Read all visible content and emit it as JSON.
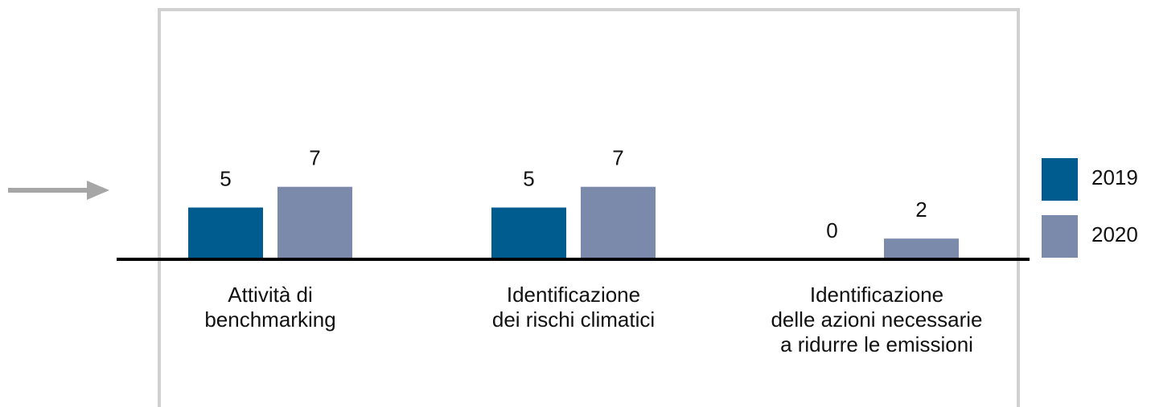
{
  "chart_data": {
    "type": "bar",
    "categories": [
      "Attività di\nbenchmarking",
      "Identificazione\ndei rischi climatici",
      "Identificazione\ndelle azioni necessarie\na ridurre le emissioni"
    ],
    "series": [
      {
        "name": "2019",
        "color": "#005b8f",
        "values": [
          5,
          5,
          0
        ]
      },
      {
        "name": "2020",
        "color": "#7b89ab",
        "values": [
          7,
          7,
          2
        ]
      }
    ]
  }
}
